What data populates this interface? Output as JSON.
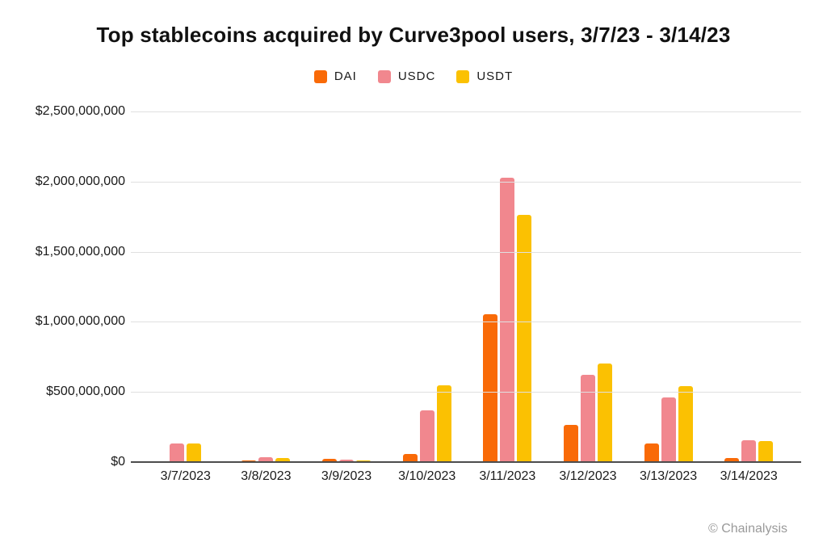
{
  "title": "Top stablecoins acquired by Curve3pool users, 3/7/23 - 3/14/23",
  "footer": {
    "credit": "© Chainalysis"
  },
  "colors": {
    "dai": "#f96a07",
    "usdc": "#f1878e",
    "usdt": "#fbc102",
    "gridline": "#e0e0e0",
    "axis_line": "#4d4d4d",
    "text": "#1a1a1a",
    "credit_text": "#9a9a9a"
  },
  "chart_data": {
    "type": "bar",
    "title": "Top stablecoins acquired by Curve3pool users, 3/7/23 - 3/14/23",
    "categories": [
      "3/7/2023",
      "3/8/2023",
      "3/9/2023",
      "3/10/2023",
      "3/11/2023",
      "3/12/2023",
      "3/13/2023",
      "3/14/2023"
    ],
    "series": [
      {
        "name": "DAI",
        "color": "#f96a07",
        "values": [
          0,
          13000000,
          26000000,
          60000000,
          1052000000,
          264000000,
          134000000,
          30000000
        ]
      },
      {
        "name": "USDC",
        "color": "#f1878e",
        "values": [
          130000000,
          36000000,
          18000000,
          370000000,
          2026000000,
          622000000,
          462000000,
          155000000
        ]
      },
      {
        "name": "USDT",
        "color": "#fbc102",
        "values": [
          130000000,
          27000000,
          10000000,
          546000000,
          1761000000,
          704000000,
          541000000,
          150000000
        ]
      }
    ],
    "y_ticks": [
      {
        "value": 0,
        "label": "$0"
      },
      {
        "value": 500000000,
        "label": "$500,000,000"
      },
      {
        "value": 1000000000,
        "label": "$1,000,000,000"
      },
      {
        "value": 1500000000,
        "label": "$1,500,000,000"
      },
      {
        "value": 2000000000,
        "label": "$2,000,000,000"
      },
      {
        "value": 2500000000,
        "label": "$2,500,000,000"
      }
    ],
    "ylim": [
      0,
      2500000000
    ],
    "xlabel": "",
    "ylabel": "",
    "grid": true,
    "legend_position": "top"
  }
}
